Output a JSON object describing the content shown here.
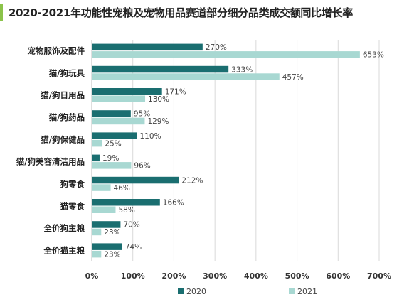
{
  "title": "2020-2021年功能性宠粮及宠物用品赛道部分细分品类成交额同比增长率",
  "colors": {
    "title_bar": "#8bc34a",
    "series_2020": "#1a6e70",
    "series_2021": "#a8d8d2",
    "grid": "#d9d9d9",
    "axis": "#bfbfbf"
  },
  "chart_data": {
    "type": "bar",
    "orientation": "horizontal",
    "title": "2020-2021年功能性宠粮及宠物用品赛道部分细分品类成交额同比增长率",
    "categories": [
      "宠物服饰及配件",
      "猫/狗玩具",
      "猫/狗日用品",
      "猫/狗药品",
      "猫/狗保健品",
      "猫/狗美容清洁用品",
      "狗零食",
      "猫零食",
      "全价狗主粮",
      "全价猫主粮"
    ],
    "series": [
      {
        "name": "2020",
        "values": [
          270,
          333,
          171,
          95,
          110,
          19,
          212,
          166,
          70,
          74
        ],
        "labels": [
          "270%",
          "333%",
          "171%",
          "95%",
          "110%",
          "19%",
          "212%",
          "166%",
          "70%",
          "74%"
        ]
      },
      {
        "name": "2021",
        "values": [
          653,
          457,
          130,
          129,
          25,
          96,
          46,
          58,
          23,
          23
        ],
        "labels": [
          "653%",
          "457%",
          "130%",
          "129%",
          "25%",
          "96%",
          "46%",
          "58%",
          "23%",
          "23%"
        ]
      }
    ],
    "xlim": [
      0,
      700
    ],
    "xticks": [
      0,
      100,
      200,
      300,
      400,
      500,
      600,
      700
    ],
    "xtick_labels": [
      "0%",
      "100%",
      "200%",
      "300%",
      "400%",
      "500%",
      "600%",
      "700%"
    ],
    "grid": true,
    "legend": "bottom",
    "xlabel": "",
    "ylabel": ""
  }
}
